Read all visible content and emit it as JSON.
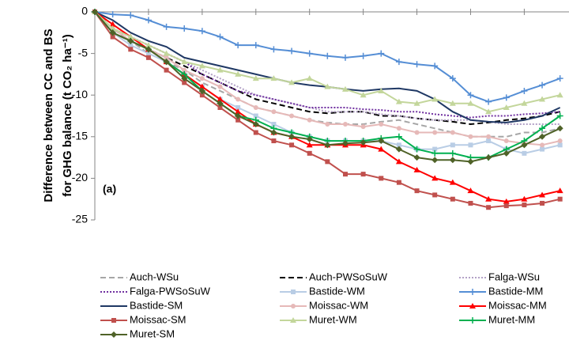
{
  "chart_data": {
    "type": "line",
    "y_label": [
      "Difference between CC and BS",
      "for GHG balance (t CO₂ ha⁻¹)"
    ],
    "annotation": "(a)",
    "x": [
      0,
      2,
      4,
      6,
      8,
      10,
      12,
      14,
      16,
      18,
      20,
      22,
      24,
      26,
      28,
      30,
      32,
      34,
      36,
      38,
      40,
      42,
      44,
      46,
      48,
      50,
      52
    ],
    "xlim": [
      0,
      53
    ],
    "xticks": [
      0,
      6,
      12,
      18,
      24,
      30,
      36,
      42,
      48
    ],
    "ylim": [
      -25,
      0
    ],
    "yticks": [
      -25,
      -20,
      -15,
      -10,
      -5,
      0
    ],
    "series": [
      {
        "name": "Auch-WSu",
        "color": "#a6a6a6",
        "dash": "dashed",
        "marker": "none",
        "values": [
          0,
          -2,
          -3.5,
          -5,
          -6,
          -7,
          -8.5,
          -9.5,
          -10.5,
          -11.5,
          -12,
          -12.5,
          -13,
          -13.3,
          -13.5,
          -13.5,
          -13.2,
          -13,
          -13.5,
          -14,
          -14.5,
          -15,
          -15,
          -15,
          -14.5,
          -14.5,
          -14
        ]
      },
      {
        "name": "Auch-PWSoSuW",
        "color": "#000000",
        "dash": "dashed",
        "marker": "none",
        "values": [
          0,
          -2,
          -3.5,
          -4.5,
          -5.5,
          -6.5,
          -7.5,
          -8.5,
          -9.5,
          -10.5,
          -11,
          -11.5,
          -12,
          -12.2,
          -12,
          -12,
          -12.5,
          -12.5,
          -12.8,
          -13,
          -13.2,
          -13.5,
          -13.3,
          -13,
          -12.8,
          -12.5,
          -12
        ]
      },
      {
        "name": "Falga-WSu",
        "color": "#b3a2c7",
        "dash": "dotted",
        "marker": "none",
        "values": [
          0,
          -2,
          -3,
          -4,
          -5,
          -6,
          -7,
          -8,
          -9,
          -10,
          -10.5,
          -11,
          -11.5,
          -12,
          -12,
          -12,
          -12.3,
          -12.5,
          -12.8,
          -13,
          -13,
          -13,
          -13.2,
          -13.5,
          -13.5,
          -13.5,
          -13.5
        ]
      },
      {
        "name": "Falga-PWSoSuW",
        "color": "#7030a0",
        "dash": "dotted",
        "marker": "none",
        "values": [
          0,
          -2,
          -3,
          -4,
          -5,
          -6,
          -7.5,
          -8.5,
          -9.5,
          -10,
          -10.5,
          -11,
          -11.5,
          -11.5,
          -11.5,
          -11.7,
          -11.8,
          -12,
          -12,
          -12.3,
          -12.5,
          -12.7,
          -12.5,
          -12.5,
          -12.3,
          -12.2,
          -12
        ]
      },
      {
        "name": "Bastide-WM",
        "color": "#b9cde5",
        "dash": "solid",
        "marker": "square",
        "values": [
          0,
          -2.5,
          -4,
          -5,
          -6,
          -7.5,
          -9,
          -10.5,
          -11.5,
          -12.5,
          -13.5,
          -14.5,
          -15,
          -15.5,
          -15.5,
          -15.5,
          -15.5,
          -16,
          -16.5,
          -16.5,
          -16,
          -16,
          -15.5,
          -16.5,
          -17,
          -16.5,
          -16
        ]
      },
      {
        "name": "Bastide-MM",
        "color": "#558ed5",
        "dash": "solid",
        "marker": "plus",
        "values": [
          0,
          -0.3,
          -0.4,
          -1,
          -1.8,
          -2,
          -2.3,
          -3,
          -4,
          -4,
          -4.5,
          -4.7,
          -5,
          -5.3,
          -5.5,
          -5.3,
          -5,
          -6,
          -6.3,
          -6.5,
          -8,
          -10,
          -10.8,
          -10.3,
          -9.5,
          -8.8,
          -8
        ]
      },
      {
        "name": "Bastide-SM",
        "color": "#1f3864",
        "dash": "solid",
        "marker": "none",
        "values": [
          0,
          -1,
          -2.5,
          -3.5,
          -4.2,
          -5.5,
          -6,
          -6.5,
          -7,
          -7.5,
          -8,
          -8.5,
          -8.8,
          -9,
          -9.3,
          -9.5,
          -9.3,
          -9.2,
          -9.5,
          -10.5,
          -12,
          -13,
          -13.2,
          -13.3,
          -13,
          -12.5,
          -11.5
        ]
      },
      {
        "name": "Moissac-WM",
        "color": "#e6b9b8",
        "dash": "solid",
        "marker": "circle",
        "values": [
          0,
          -2,
          -3.5,
          -4.5,
          -5.5,
          -7,
          -8,
          -9,
          -10.5,
          -11.5,
          -12,
          -12.5,
          -13,
          -13.5,
          -13.5,
          -13.8,
          -13.5,
          -14,
          -14.5,
          -14.5,
          -14.5,
          -15,
          -15,
          -15.5,
          -15.8,
          -16,
          -15.5
        ]
      },
      {
        "name": "Moissac-MM",
        "color": "#ff0000",
        "dash": "solid",
        "marker": "triangle",
        "values": [
          0,
          -1.5,
          -3,
          -4.5,
          -6,
          -7.5,
          -9,
          -10.5,
          -12,
          -13.5,
          -14.5,
          -15,
          -16,
          -16,
          -16,
          -16,
          -16.5,
          -18,
          -19,
          -20,
          -20.5,
          -21.5,
          -22.5,
          -22.8,
          -22.5,
          -22,
          -21.5
        ]
      },
      {
        "name": "Moissac-SM",
        "color": "#c0504d",
        "dash": "solid",
        "marker": "square",
        "values": [
          0,
          -3,
          -4.5,
          -5.5,
          -7,
          -8.5,
          -10,
          -11.5,
          -13,
          -14.5,
          -15.5,
          -16,
          -17,
          -18,
          -19.5,
          -19.5,
          -20,
          -20.5,
          -21.5,
          -22,
          -22.5,
          -23,
          -23.5,
          -23.3,
          -23.2,
          -23,
          -22.5
        ]
      },
      {
        "name": "Muret-WM",
        "color": "#c3d69b",
        "dash": "solid",
        "marker": "triangle",
        "values": [
          0,
          -2,
          -3,
          -4,
          -5,
          -6,
          -6.5,
          -7,
          -7.5,
          -8,
          -8,
          -8.5,
          -8,
          -9,
          -9.3,
          -10,
          -9.5,
          -10.8,
          -11,
          -10.5,
          -11,
          -11,
          -12,
          -11.5,
          -11,
          -10.5,
          -10
        ]
      },
      {
        "name": "Muret-MM",
        "color": "#00b050",
        "dash": "solid",
        "marker": "plus",
        "values": [
          0,
          -2.5,
          -3.5,
          -4.5,
          -6,
          -7.5,
          -9.5,
          -11,
          -12.5,
          -13,
          -14,
          -14.5,
          -15,
          -15.5,
          -15.5,
          -15.5,
          -15.2,
          -15,
          -16.5,
          -17,
          -17,
          -17.5,
          -17.5,
          -16.5,
          -15.5,
          -14,
          -12.5
        ]
      },
      {
        "name": "Muret-SM",
        "color": "#4f6228",
        "dash": "solid",
        "marker": "diamond",
        "values": [
          0,
          -2.5,
          -3.5,
          -4.5,
          -6,
          -8,
          -9.5,
          -11,
          -12.5,
          -13.5,
          -14.5,
          -15,
          -15.3,
          -16,
          -15.8,
          -15.7,
          -15.5,
          -16.5,
          -17.5,
          -17.8,
          -17.8,
          -18,
          -17.5,
          -17,
          -16,
          -15,
          -14
        ]
      }
    ]
  }
}
